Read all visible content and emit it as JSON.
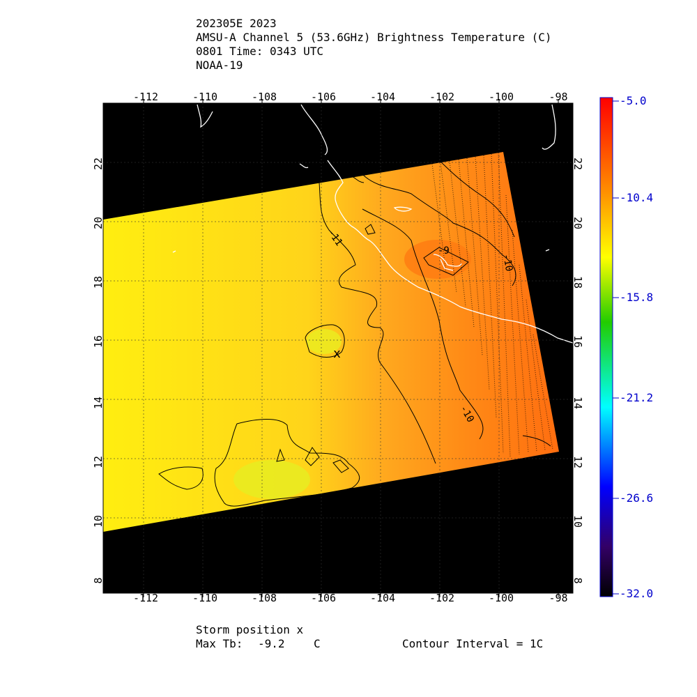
{
  "header": {
    "line1": "202305E 2023",
    "line2": "AMSU-A Channel 5 (53.6GHz) Brightness Temperature (C)",
    "line3": "0801 Time: 0343 UTC",
    "line4": "NOAA-19"
  },
  "map": {
    "lon_ticks": [
      "-112",
      "-110",
      "-108",
      "-106",
      "-104",
      "-102",
      "-100",
      "-98"
    ],
    "lat_ticks": [
      "8",
      "10",
      "12",
      "14",
      "16",
      "18",
      "20",
      "22"
    ],
    "contour_labels": {
      "left": "-11",
      "center": "-9",
      "right": "-10",
      "lower": "-10"
    }
  },
  "colorbar": {
    "labels": [
      "-5.0",
      "-10.4",
      "-15.8",
      "-21.2",
      "-26.6",
      "-32.0"
    ],
    "colors": [
      "#ff0000",
      "#ff8800",
      "#ffff00",
      "#00cc00",
      "#00ffff",
      "#0000ff",
      "#000000"
    ]
  },
  "footer": {
    "storm": "Storm position x",
    "max_label": "Max Tb:",
    "max_value": "-9.2",
    "max_unit": "C",
    "interval": "Contour Interval = 1C"
  }
}
